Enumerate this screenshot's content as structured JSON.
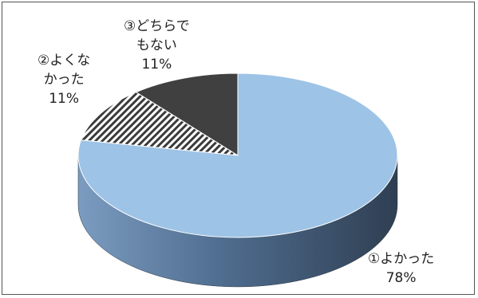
{
  "chart_data": {
    "type": "pie",
    "title": "",
    "slices": [
      {
        "name": "①よかった",
        "name_lines": [
          "①よかった"
        ],
        "value": 78,
        "label": "78%",
        "color": "#9dc3e6",
        "pattern": "solid"
      },
      {
        "name": "②よくなかった",
        "name_lines": [
          "②よくな",
          "かった"
        ],
        "value": 11,
        "label": "11%",
        "color": "#404040",
        "pattern": "diagonal-stripes"
      },
      {
        "name": "③どちらでもない",
        "name_lines": [
          "③どちらで",
          "もない"
        ],
        "value": 11,
        "label": "11%",
        "color": "#404040",
        "pattern": "solid"
      }
    ],
    "start_angle_deg": 270,
    "direction": "clockwise",
    "style": "3d-tilted",
    "legend": "none"
  }
}
